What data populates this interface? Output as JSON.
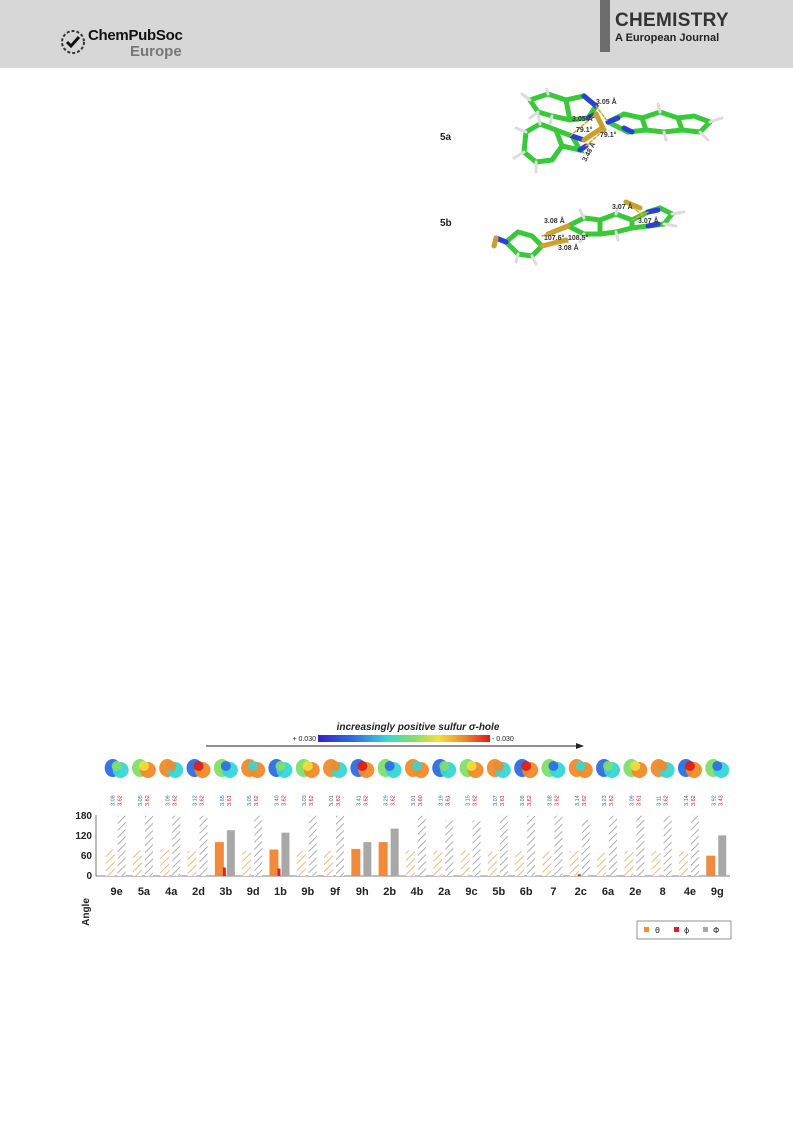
{
  "header": {
    "publisher": "ChemPubSoc",
    "publisher_region": "Europe",
    "journal_title": "CHEMISTRY",
    "journal_sub_a": "A European",
    "journal_sub_b": "Journal"
  },
  "structures": [
    {
      "label": "5a",
      "distances": [
        "3.05 Å",
        "3.05 Å",
        "3.48 Å"
      ],
      "angles": [
        "79.1°",
        "79.1°"
      ]
    },
    {
      "label": "5b",
      "distances": [
        "3.08 Å",
        "3.07 Å",
        "3.07 Å",
        "3.08 Å"
      ],
      "angles": [
        "107.6°",
        "108.5°"
      ]
    }
  ],
  "colors": {
    "theta": "#f08a3c",
    "theta_hatch": "#f3b887",
    "phi_small": "#e02020",
    "Phi": "#a8a8a8",
    "Phi_hatch": "#9a9a9a",
    "distance_label": "#3a6ea8",
    "radius_label": "#d02020",
    "carbon": "#39c83a",
    "sulfur": "#c8a030",
    "nitrogen": "#2b3fd6",
    "hydrogen": "#dcdcdc"
  },
  "chart_data": {
    "type": "bar",
    "title": "increasingly positive sulfur σ-hole",
    "scale_min_label": "+ 0.030",
    "scale_max_label": "- 0.030",
    "ylabel": "Angle",
    "ylim": [
      0,
      180
    ],
    "yticks": [
      "0",
      "60",
      "120",
      "180"
    ],
    "categories": [
      "9e",
      "5a",
      "4a",
      "2d",
      "3b",
      "9d",
      "1b",
      "9b",
      "9f",
      "9h",
      "2b",
      "4b",
      "2a",
      "9c",
      "5b",
      "6b",
      "7",
      "2c",
      "6a",
      "2e",
      "8",
      "4e",
      "9g"
    ],
    "distances": [
      "3.08",
      "3.05",
      "3.09",
      "3.12",
      "3.65",
      "3.05",
      "3.40",
      "3.03",
      "3.01",
      "3.41",
      "3.29",
      "3.01",
      "3.19",
      "3.15",
      "3.07",
      "3.09",
      "3.08",
      "3.14",
      "3.23",
      "3.09",
      "3.11",
      "3.14",
      "3.92"
    ],
    "vdw_radii": [
      "3.62",
      "3.62",
      "3.62",
      "3.62",
      "3.61",
      "3.62",
      "3.62",
      "3.62",
      "3.62",
      "3.62",
      "3.62",
      "3.60",
      "3.61",
      "3.62",
      "3.61",
      "3.62",
      "3.62",
      "3.62",
      "3.62",
      "3.61",
      "3.62",
      "3.62",
      "3.43"
    ],
    "series": [
      {
        "name": "θ",
        "values": [
          78,
          76,
          78,
          74,
          100,
          74,
          78,
          74,
          74,
          80,
          100,
          76,
          74,
          76,
          72,
          74,
          72,
          74,
          68,
          74,
          74,
          72,
          60
        ],
        "contact": [
          false,
          false,
          false,
          false,
          true,
          false,
          true,
          false,
          false,
          true,
          true,
          false,
          false,
          false,
          false,
          false,
          false,
          false,
          false,
          false,
          false,
          false,
          true
        ]
      },
      {
        "name": "ϕ",
        "values": [
          0,
          0,
          0,
          0,
          25,
          0,
          22,
          0,
          0,
          0,
          0,
          0,
          0,
          0,
          0,
          0,
          0,
          5,
          0,
          0,
          0,
          0,
          0
        ]
      },
      {
        "name": "Φ",
        "values": [
          178,
          178,
          178,
          178,
          135,
          178,
          128,
          178,
          178,
          100,
          140,
          178,
          163,
          163,
          178,
          178,
          178,
          166,
          178,
          178,
          178,
          178,
          120
        ],
        "contact": [
          false,
          false,
          false,
          false,
          true,
          false,
          true,
          false,
          false,
          true,
          true,
          false,
          false,
          false,
          false,
          false,
          false,
          false,
          false,
          false,
          false,
          false,
          true
        ]
      }
    ],
    "legend": [
      "θ",
      "ϕ",
      "Φ"
    ],
    "legend_position": "bottom-right",
    "grid": false
  }
}
